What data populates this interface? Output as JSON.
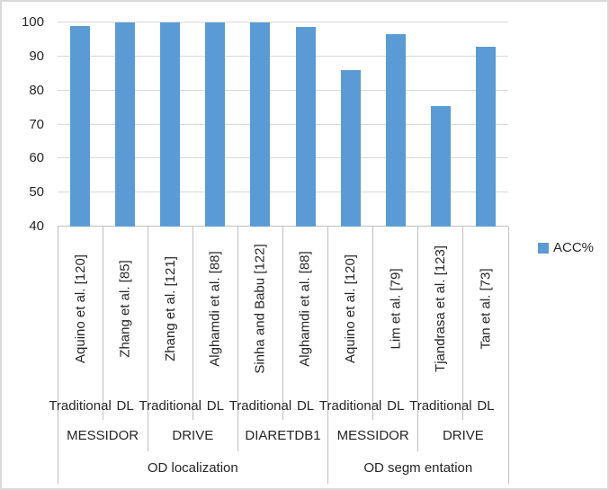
{
  "chart_data": {
    "type": "bar",
    "title": "",
    "xlabel": "",
    "ylabel": "",
    "grid": true,
    "legend_position": "right",
    "ylim": [
      40,
      100
    ],
    "yticks": [
      100,
      90,
      80,
      70,
      60,
      50,
      40
    ],
    "categories": [
      "Aquino et al. [120]",
      "Zhang et al. [85]",
      "Zhang et al. [121]",
      "Alghamdi et al. [88]",
      "Sinha and Babu [122]",
      "Alghamdi et al. [88]",
      "Aquino et al. [120]",
      "Lim et al. [79]",
      "Tjandrasa et al. [123]",
      "Tan et al. [73]"
    ],
    "series": [
      {
        "name": "ACC%",
        "color": "#5B9BD5",
        "values": [
          99,
          100,
          100,
          100,
          100,
          98.8,
          86,
          96.5,
          75.3,
          92.8
        ]
      }
    ],
    "category_levels": {
      "method": [
        "Traditional",
        "DL",
        "Traditional",
        "DL",
        "Traditional",
        "DL",
        "Traditional",
        "DL",
        "Traditional",
        "DL"
      ],
      "dataset_groups": [
        {
          "label": "MESSIDOR",
          "span": 2
        },
        {
          "label": "DRIVE",
          "span": 2
        },
        {
          "label": "DIARETDB1",
          "span": 2
        },
        {
          "label": "MESSIDOR",
          "span": 2
        },
        {
          "label": "DRIVE",
          "span": 2
        }
      ],
      "task_groups": [
        {
          "label": "OD localization",
          "span": 6
        },
        {
          "label": "OD segm entation",
          "span": 4
        }
      ]
    },
    "colors": {
      "bar": "#5B9BD5",
      "gridline": "#D9D9D9",
      "axis": "#BFBFBF",
      "text": "#262626",
      "chart_border": "#D9D9D9"
    }
  }
}
